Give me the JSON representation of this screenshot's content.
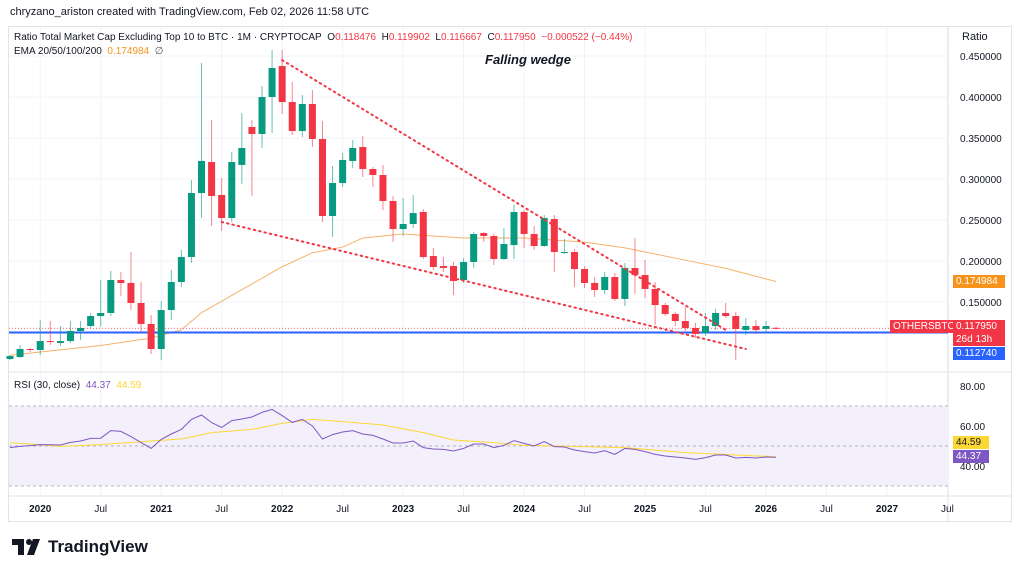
{
  "credit": "chryzano_ariston created with TradingView.com, Feb 02, 2026 11:58 UTC",
  "legend": {
    "title": "Ratio Total Market Cap Excluding Top 10 to BTC · 1M · CRYPTOCAP",
    "o_label": "O",
    "o": "0.118476",
    "h_label": "H",
    "h": "0.119902",
    "l_label": "L",
    "l": "0.116667",
    "c_label": "C",
    "c": "0.117950",
    "change": "−0.000522 (−0.44%)",
    "ema_label": "EMA 20/50/100/200",
    "ema_value": "0.174984",
    "ema_extra": "∅",
    "rsi_label": "RSI (30, close)",
    "rsi_value": "44.37",
    "rsi_ma_value": "44.59"
  },
  "annotation": "Falling wedge",
  "price_axis_title": "Ratio",
  "tags": {
    "symbol": "OTHERSBTC",
    "last": "0.117950",
    "countdown": "26d 13h",
    "hline": "0.112740",
    "ema": "0.174984",
    "rsi_ma": "44.59",
    "rsi": "44.37"
  },
  "brand": "TradingView",
  "colors": {
    "up": "#089981",
    "down": "#f23645",
    "ema": "#f7b26a",
    "hline": "#2962ff",
    "trend": "#f23645",
    "rsi": "#7e57c2",
    "rsi_ma": "#fdd835",
    "rsi_band": "#f3effb",
    "ema_tag": "#f7931a"
  },
  "chart_data": {
    "type": "candlestick",
    "symbol": "OTHERSBTC",
    "timeframe": "1M",
    "ylim": [
      0.08,
      0.46
    ],
    "y_ticks": [
      "0.450000",
      "0.400000",
      "0.350000",
      "0.300000",
      "0.250000",
      "0.200000",
      "0.150000"
    ],
    "y_tick_values": [
      0.45,
      0.4,
      0.35,
      0.3,
      0.25,
      0.2,
      0.15
    ],
    "x_ticks": [
      [
        "2020-01",
        "2020"
      ],
      [
        "2020-07",
        "Jul"
      ],
      [
        "2021-01",
        "2021"
      ],
      [
        "2021-07",
        "Jul"
      ],
      [
        "2022-01",
        "2022"
      ],
      [
        "2022-07",
        "Jul"
      ],
      [
        "2023-01",
        "2023"
      ],
      [
        "2023-07",
        "Jul"
      ],
      [
        "2024-01",
        "2024"
      ],
      [
        "2024-07",
        "Jul"
      ],
      [
        "2025-01",
        "2025"
      ],
      [
        "2025-07",
        "Jul"
      ],
      [
        "2026-01",
        "2026"
      ],
      [
        "2026-07",
        "Jul"
      ],
      [
        "2027-01",
        "2027"
      ],
      [
        "2027-07",
        "Jul"
      ]
    ],
    "candles_ohlc": [
      [
        "2019-10",
        0.0805,
        0.0854,
        0.0793,
        0.0841
      ],
      [
        "2019-11",
        0.0829,
        0.0976,
        0.0817,
        0.0927
      ],
      [
        "2019-12",
        0.0927,
        0.0939,
        0.089,
        0.0915
      ],
      [
        "2020-01",
        0.0915,
        0.128,
        0.0854,
        0.1024
      ],
      [
        "2020-02",
        0.1024,
        0.1268,
        0.0976,
        0.1012
      ],
      [
        "2020-03",
        0.1,
        0.1207,
        0.0963,
        0.1024
      ],
      [
        "2020-04",
        0.1024,
        0.1268,
        0.1,
        0.1146
      ],
      [
        "2020-05",
        0.1146,
        0.1268,
        0.1037,
        0.1183
      ],
      [
        "2020-06",
        0.1207,
        0.1366,
        0.1183,
        0.1329
      ],
      [
        "2020-07",
        0.1329,
        0.1768,
        0.1195,
        0.1366
      ],
      [
        "2020-08",
        0.1366,
        0.1878,
        0.1329,
        0.1768
      ],
      [
        "2020-09",
        0.1768,
        0.1866,
        0.1573,
        0.1732
      ],
      [
        "2020-10",
        0.1732,
        0.211,
        0.1402,
        0.1488
      ],
      [
        "2020-11",
        0.1488,
        0.1744,
        0.1122,
        0.1232
      ],
      [
        "2020-12",
        0.1232,
        0.1341,
        0.0866,
        0.0927
      ],
      [
        "2021-01",
        0.0927,
        0.1512,
        0.0793,
        0.1402
      ],
      [
        "2021-02",
        0.1402,
        0.189,
        0.128,
        0.1744
      ],
      [
        "2021-03",
        0.1744,
        0.2134,
        0.1683,
        0.2049
      ],
      [
        "2021-04",
        0.2049,
        0.2988,
        0.1976,
        0.2829
      ],
      [
        "2021-05",
        0.2829,
        0.4415,
        0.2524,
        0.322
      ],
      [
        "2021-06",
        0.3207,
        0.372,
        0.2427,
        0.2793
      ],
      [
        "2021-07",
        0.2805,
        0.3012,
        0.2366,
        0.2524
      ],
      [
        "2021-08",
        0.2524,
        0.3329,
        0.2476,
        0.3207
      ],
      [
        "2021-09",
        0.3171,
        0.3805,
        0.2939,
        0.3378
      ],
      [
        "2021-10",
        0.3634,
        0.372,
        0.2793,
        0.3549
      ],
      [
        "2021-11",
        0.3549,
        0.4134,
        0.3378,
        0.4
      ],
      [
        "2021-12",
        0.4,
        0.4573,
        0.3561,
        0.4354
      ],
      [
        "2022-01",
        0.4378,
        0.4573,
        0.3793,
        0.3939
      ],
      [
        "2022-02",
        0.3939,
        0.4183,
        0.3537,
        0.3585
      ],
      [
        "2022-03",
        0.3585,
        0.4024,
        0.3512,
        0.3915
      ],
      [
        "2022-04",
        0.3915,
        0.4085,
        0.339,
        0.3488
      ],
      [
        "2022-05",
        0.3488,
        0.3707,
        0.2476,
        0.2549
      ],
      [
        "2022-06",
        0.2549,
        0.3159,
        0.2293,
        0.2951
      ],
      [
        "2022-07",
        0.2951,
        0.3317,
        0.2902,
        0.3232
      ],
      [
        "2022-08",
        0.322,
        0.3476,
        0.3134,
        0.3378
      ],
      [
        "2022-09",
        0.339,
        0.3524,
        0.3024,
        0.3122
      ],
      [
        "2022-10",
        0.3122,
        0.3146,
        0.2902,
        0.3049
      ],
      [
        "2022-11",
        0.3049,
        0.3171,
        0.2622,
        0.2732
      ],
      [
        "2022-12",
        0.2732,
        0.2793,
        0.2232,
        0.239
      ],
      [
        "2023-01",
        0.239,
        0.2768,
        0.2305,
        0.2451
      ],
      [
        "2023-02",
        0.2451,
        0.2805,
        0.2402,
        0.2585
      ],
      [
        "2023-03",
        0.2598,
        0.2634,
        0.2024,
        0.2049
      ],
      [
        "2023-04",
        0.2061,
        0.2159,
        0.189,
        0.1927
      ],
      [
        "2023-05",
        0.1939,
        0.2049,
        0.1866,
        0.1915
      ],
      [
        "2023-06",
        0.1939,
        0.1988,
        0.1585,
        0.1756
      ],
      [
        "2023-07",
        0.1768,
        0.2037,
        0.1732,
        0.1988
      ],
      [
        "2023-08",
        0.1988,
        0.2354,
        0.1915,
        0.2329
      ],
      [
        "2023-09",
        0.2341,
        0.2354,
        0.2232,
        0.2305
      ],
      [
        "2023-10",
        0.2305,
        0.2329,
        0.1951,
        0.2024
      ],
      [
        "2023-11",
        0.2024,
        0.2402,
        0.2012,
        0.2207
      ],
      [
        "2023-12",
        0.2195,
        0.2683,
        0.2024,
        0.2598
      ],
      [
        "2024-01",
        0.2598,
        0.2622,
        0.2159,
        0.2329
      ],
      [
        "2024-02",
        0.2329,
        0.2427,
        0.2134,
        0.2183
      ],
      [
        "2024-03",
        0.2183,
        0.2561,
        0.2171,
        0.2524
      ],
      [
        "2024-04",
        0.2512,
        0.2561,
        0.1866,
        0.211
      ],
      [
        "2024-05",
        0.211,
        0.2268,
        0.2085,
        0.211
      ],
      [
        "2024-06",
        0.211,
        0.2146,
        0.1683,
        0.1902
      ],
      [
        "2024-07",
        0.1902,
        0.1939,
        0.1671,
        0.1732
      ],
      [
        "2024-08",
        0.1732,
        0.1805,
        0.1561,
        0.1646
      ],
      [
        "2024-09",
        0.1646,
        0.1866,
        0.1598,
        0.1805
      ],
      [
        "2024-10",
        0.1805,
        0.1854,
        0.1512,
        0.1537
      ],
      [
        "2024-11",
        0.1537,
        0.1976,
        0.1451,
        0.1915
      ],
      [
        "2024-12",
        0.1915,
        0.228,
        0.1598,
        0.1829
      ],
      [
        "2025-01",
        0.1829,
        0.2012,
        0.1549,
        0.1659
      ],
      [
        "2025-02",
        0.1659,
        0.1744,
        0.122,
        0.1463
      ],
      [
        "2025-03",
        0.1463,
        0.1488,
        0.1329,
        0.1354
      ],
      [
        "2025-04",
        0.1354,
        0.1378,
        0.1207,
        0.1268
      ],
      [
        "2025-05",
        0.1268,
        0.1439,
        0.1146,
        0.1183
      ],
      [
        "2025-06",
        0.1183,
        0.1244,
        0.1061,
        0.111
      ],
      [
        "2025-07",
        0.1122,
        0.1366,
        0.1085,
        0.1207
      ],
      [
        "2025-08",
        0.1207,
        0.1415,
        0.1159,
        0.1366
      ],
      [
        "2025-09",
        0.1366,
        0.1488,
        0.1305,
        0.1329
      ],
      [
        "2025-10",
        0.1329,
        0.1378,
        0.0793,
        0.1171
      ],
      [
        "2025-11",
        0.1159,
        0.1305,
        0.1098,
        0.1207
      ],
      [
        "2025-12",
        0.1207,
        0.128,
        0.111,
        0.1159
      ],
      [
        "2026-01",
        0.1171,
        0.1268,
        0.1122,
        0.1207
      ],
      [
        "2026-02",
        0.118476,
        0.119902,
        0.116667,
        0.11795
      ]
    ],
    "ema": [
      [
        "2019-10",
        0.085
      ],
      [
        "2020-07",
        0.097
      ],
      [
        "2020-12",
        0.106
      ],
      [
        "2021-03",
        0.116
      ],
      [
        "2021-05",
        0.137
      ],
      [
        "2021-09",
        0.165
      ],
      [
        "2022-01",
        0.193
      ],
      [
        "2022-04",
        0.21
      ],
      [
        "2022-07",
        0.217
      ],
      [
        "2022-09",
        0.228
      ],
      [
        "2023-01",
        0.233
      ],
      [
        "2023-07",
        0.228
      ],
      [
        "2024-01",
        0.228
      ],
      [
        "2024-07",
        0.223
      ],
      [
        "2024-11",
        0.216
      ],
      [
        "2025-01",
        0.211
      ],
      [
        "2025-05",
        0.201
      ],
      [
        "2025-09",
        0.191
      ],
      [
        "2026-02",
        0.174984
      ]
    ],
    "horizontal_line": 0.11274,
    "trendlines": [
      {
        "from": [
          "2022-01",
          0.445
        ],
        "to": [
          "2025-09",
          0.116
        ]
      },
      {
        "from": [
          "2021-07",
          0.2476
        ],
        "to": [
          "2025-11",
          0.0927
        ]
      }
    ],
    "rsi": {
      "ylim": [
        20,
        90
      ],
      "y_ticks": [
        "80.00",
        "60.00",
        "40.00"
      ],
      "y_tick_values": [
        80,
        60,
        40
      ],
      "band": [
        30,
        70
      ],
      "midline": 50,
      "values": [
        49.2,
        49.8,
        50.2,
        50.7,
        50.6,
        50.5,
        51.8,
        52.5,
        53.8,
        53.9,
        57.7,
        57.3,
        54.7,
        51.7,
        48.8,
        53.3,
        56,
        58.3,
        63.3,
        65.5,
        61.7,
        59.3,
        62.7,
        63.5,
        64.5,
        66.8,
        68.3,
        65.2,
        61.8,
        63.3,
        60,
        53.5,
        55.7,
        57,
        57.7,
        56,
        55.3,
        53.5,
        51.5,
        51.5,
        52.5,
        49.2,
        48.5,
        48.3,
        47.5,
        48.8,
        51,
        51,
        49.2,
        50.3,
        52.7,
        51.3,
        50,
        52.2,
        49.7,
        49.5,
        48,
        47.2,
        46.5,
        47.7,
        45.8,
        48.8,
        48.3,
        47.2,
        45.8,
        45,
        44.5,
        44,
        43.3,
        44.2,
        45.5,
        45.5,
        44,
        44.3,
        44,
        44.5,
        44.37
      ],
      "ma": [
        [
          "2019-10",
          51.6
        ],
        [
          "2019-12",
          51
        ],
        [
          "2020-03",
          49.8
        ],
        [
          "2020-07",
          50.7
        ],
        [
          "2020-12",
          52.5
        ],
        [
          "2021-03",
          53.5
        ],
        [
          "2021-06",
          56.7
        ],
        [
          "2021-10",
          58.3
        ],
        [
          "2022-01",
          61.3
        ],
        [
          "2022-04",
          63.3
        ],
        [
          "2022-07",
          62.2
        ],
        [
          "2022-11",
          60.5
        ],
        [
          "2023-03",
          56.7
        ],
        [
          "2023-06",
          53
        ],
        [
          "2023-10",
          51.7
        ],
        [
          "2024-01",
          50.3
        ],
        [
          "2024-04",
          50
        ],
        [
          "2024-11",
          49.2
        ],
        [
          "2025-05",
          46.7
        ],
        [
          "2026-02",
          44.59
        ]
      ]
    }
  }
}
